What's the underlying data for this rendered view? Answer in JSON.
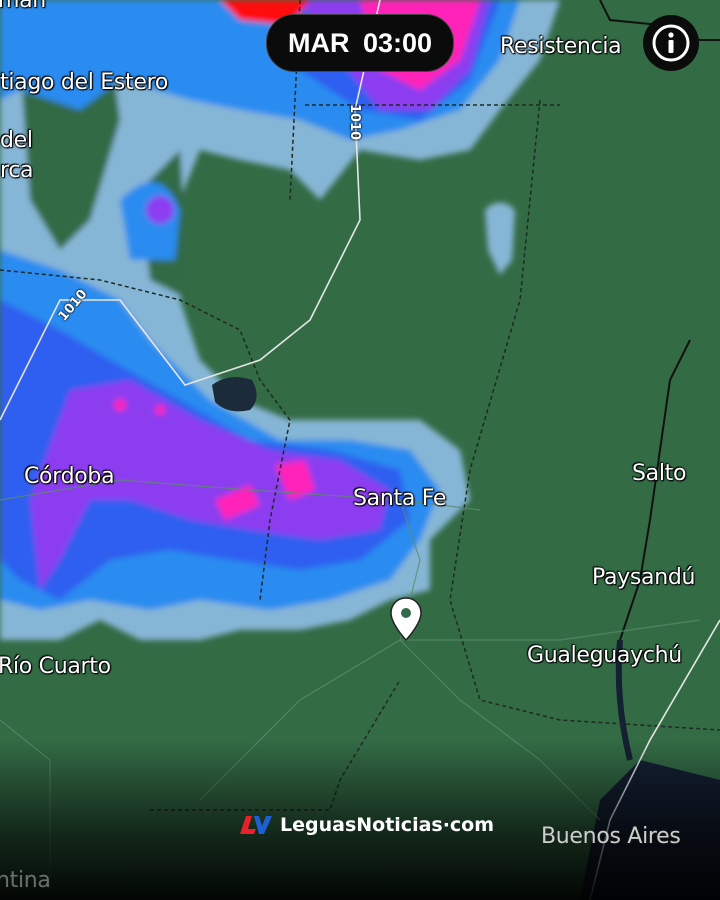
{
  "time_badge": {
    "label": "MAR  03:00"
  },
  "info_button": {
    "icon": "info-icon"
  },
  "cities": {
    "tucuman_partial": "man",
    "santiago": "tiago del Estero",
    "catamarca_1": "del",
    "catamarca_2": "rca",
    "resistencia": "Resistencia",
    "cordoba": "Córdoba",
    "santa_fe": "Santa Fe",
    "salto": "Salto",
    "paysandu": "Paysandú",
    "rio_cuarto": "Río Cuarto",
    "gualeguaychu": "Gualeguaychú",
    "buenos_aires": "Buenos Aires",
    "argentina_partial": "ntina"
  },
  "isobars": {
    "north": "1010",
    "west": "1010"
  },
  "location_marker": {
    "icon": "map-pin-icon"
  },
  "watermark": {
    "text": "LeguasNoticias·com",
    "logo": "LN"
  },
  "colors": {
    "land": "#336b45",
    "water": "#1c2b3a",
    "precip_light": "#86b6d6",
    "precip_blue": "#2a8cf0",
    "precip_deep": "#2f5ff0",
    "precip_purple": "#8c3cf0",
    "precip_magenta": "#ff22b8",
    "precip_red": "#ff1010"
  }
}
